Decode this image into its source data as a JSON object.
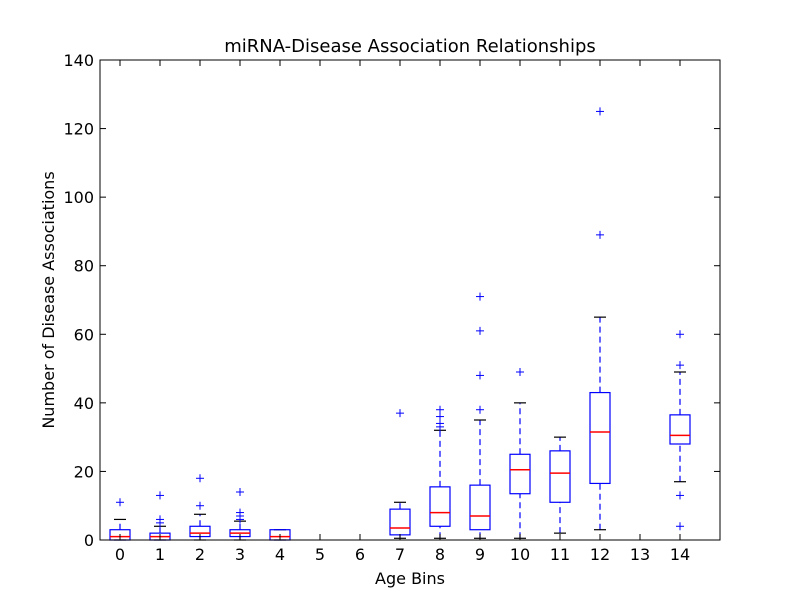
{
  "chart_data": {
    "type": "box",
    "title": "miRNA-Disease Association Relationships",
    "xlabel": "Age Bins",
    "ylabel": "Number of Disease Associations",
    "ylim": [
      0,
      140
    ],
    "yticks": [
      0,
      20,
      40,
      60,
      80,
      100,
      120,
      140
    ],
    "categories": [
      "0",
      "1",
      "2",
      "3",
      "4",
      "5",
      "6",
      "7",
      "8",
      "9",
      "10",
      "11",
      "12",
      "13",
      "14"
    ],
    "grid": false,
    "colors": {
      "box": "#0000ff",
      "median": "#ff0000",
      "whisker": "#0000ff",
      "cap": "#000000",
      "outlier": "#0000ff",
      "axes": "#000000"
    },
    "series": [
      {
        "category": "0",
        "whisker_low": 0,
        "q1": 0,
        "median": 1,
        "q3": 3,
        "whisker_high": 6,
        "outliers": [
          11
        ]
      },
      {
        "category": "1",
        "whisker_low": 0,
        "q1": 0,
        "median": 1,
        "q3": 2,
        "whisker_high": 4,
        "outliers": [
          5,
          6,
          13
        ]
      },
      {
        "category": "2",
        "whisker_low": 0,
        "q1": 1,
        "median": 2,
        "q3": 4,
        "whisker_high": 7.5,
        "outliers": [
          10,
          18
        ]
      },
      {
        "category": "3",
        "whisker_low": 0,
        "q1": 1,
        "median": 2,
        "q3": 3,
        "whisker_high": 5.5,
        "outliers": [
          6,
          7,
          8,
          14
        ]
      },
      {
        "category": "4",
        "whisker_low": 0,
        "q1": 0,
        "median": 1,
        "q3": 3,
        "whisker_high": 3,
        "outliers": []
      },
      {
        "category": "5",
        "empty": true
      },
      {
        "category": "6",
        "empty": true
      },
      {
        "category": "7",
        "whisker_low": 0.5,
        "q1": 1.5,
        "median": 3.5,
        "q3": 9,
        "whisker_high": 11,
        "outliers": [
          37
        ]
      },
      {
        "category": "8",
        "whisker_low": 0.5,
        "q1": 4,
        "median": 8,
        "q3": 15.5,
        "whisker_high": 32,
        "outliers": [
          33,
          34,
          36,
          38
        ]
      },
      {
        "category": "9",
        "whisker_low": 0.5,
        "q1": 3,
        "median": 7,
        "q3": 16,
        "whisker_high": 35,
        "outliers": [
          38,
          48,
          61,
          71
        ]
      },
      {
        "category": "10",
        "whisker_low": 0.5,
        "q1": 13.5,
        "median": 20.5,
        "q3": 25,
        "whisker_high": 40,
        "outliers": [
          49
        ]
      },
      {
        "category": "11",
        "whisker_low": 2,
        "q1": 11,
        "median": 19.5,
        "q3": 26,
        "whisker_high": 30,
        "outliers": []
      },
      {
        "category": "12",
        "whisker_low": 3,
        "q1": 16.5,
        "median": 31.5,
        "q3": 43,
        "whisker_high": 65,
        "outliers": [
          89,
          125
        ]
      },
      {
        "category": "13",
        "empty": true
      },
      {
        "category": "14",
        "whisker_low": 17,
        "q1": 28,
        "median": 30.5,
        "q3": 36.5,
        "whisker_high": 49,
        "outliers": [
          4,
          13,
          51,
          60
        ]
      }
    ]
  }
}
